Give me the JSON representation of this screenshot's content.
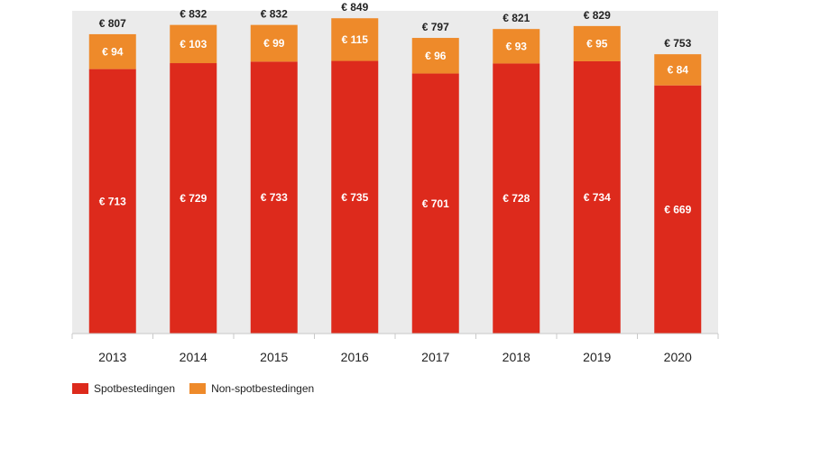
{
  "chart_data": {
    "type": "bar",
    "stacked": true,
    "categories": [
      "2013",
      "2014",
      "2015",
      "2016",
      "2017",
      "2018",
      "2019",
      "2020"
    ],
    "series": [
      {
        "name": "Spotbestedingen",
        "color": "#dd2a1c",
        "values": [
          713,
          729,
          733,
          735,
          701,
          728,
          734,
          669
        ]
      },
      {
        "name": "Non-spotbestedingen",
        "color": "#ee8a2a",
        "values": [
          94,
          103,
          99,
          115,
          96,
          93,
          95,
          84
        ]
      }
    ],
    "totals": [
      807,
      832,
      832,
      849,
      797,
      821,
      829,
      753
    ],
    "value_prefix": "€ ",
    "ylim": [
      0,
      870
    ],
    "legend_position": "bottom-left",
    "grid": false,
    "plot_background": "#ebebeb"
  }
}
